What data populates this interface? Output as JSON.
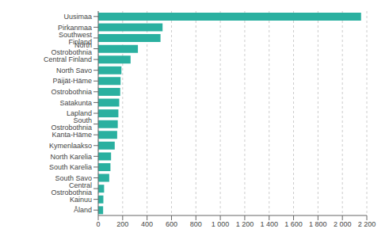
{
  "chart_data": {
    "type": "bar",
    "orientation": "horizontal",
    "categories": [
      "Uusimaa",
      "Pirkanmaa",
      "Southwest Finland",
      "North Ostrobothnia",
      "Central Finland",
      "North Savo",
      "Päijät-Häme",
      "Ostrobothnia",
      "Satakunta",
      "Lapland",
      "South Ostrobothnia",
      "Kanta-Häme",
      "Kymenlaakso",
      "North Karelia",
      "South Karelia",
      "South Savo",
      "Central Ostrobothnia",
      "Kainuu",
      "Åland"
    ],
    "values": [
      2153,
      527,
      510,
      325,
      265,
      190,
      183,
      180,
      172,
      165,
      160,
      155,
      135,
      105,
      100,
      90,
      48,
      42,
      40
    ],
    "color": "#2ab0a0",
    "xlim": [
      0,
      2200
    ],
    "xticks": [
      0,
      200,
      400,
      600,
      800,
      {
        "value": 1000,
        "label": "1 000"
      },
      {
        "value": 1200,
        "label": "1 200"
      },
      {
        "value": 1400,
        "label": "1 400"
      },
      {
        "value": 1600,
        "label": "1 600"
      },
      {
        "value": 1800,
        "label": "1 800"
      },
      {
        "value": 2000,
        "label": "2 000"
      },
      {
        "value": 2200,
        "label": "2 200"
      }
    ],
    "grid": true
  }
}
